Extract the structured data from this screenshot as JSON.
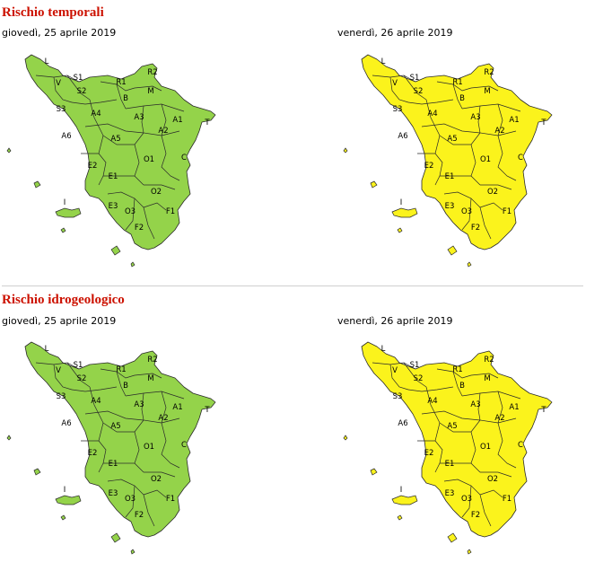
{
  "colors": {
    "title": "#cc1100",
    "green": "#94d34a",
    "yellow": "#fbf31c",
    "border": "#2a2a2a"
  },
  "sections": [
    {
      "title": "Rischio temporali",
      "maps": [
        {
          "date": "giovedì, 25 aprile 2019",
          "fill": "green"
        },
        {
          "date": "venerdì, 26 aprile 2019",
          "fill": "yellow"
        }
      ]
    },
    {
      "title": "Rischio idrogeologico",
      "maps": [
        {
          "date": "giovedì, 25 aprile 2019",
          "fill": "green"
        },
        {
          "date": "venerdì, 26 aprile 2019",
          "fill": "yellow"
        }
      ]
    }
  ],
  "zone_labels": [
    "L",
    "V",
    "S1",
    "S2",
    "S3",
    "R1",
    "R2",
    "B",
    "M",
    "A4",
    "A3",
    "A1",
    "A2",
    "T",
    "A6",
    "A5",
    "O1",
    "C",
    "E2",
    "E1",
    "O2",
    "I",
    "E3",
    "O3",
    "F1",
    "F2"
  ]
}
